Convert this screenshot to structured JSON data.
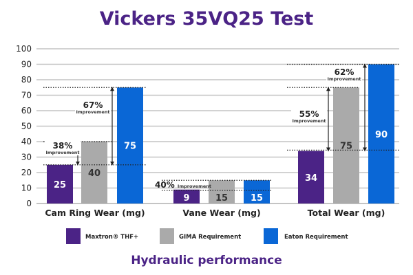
{
  "chart_data": {
    "type": "bar",
    "title": "Vickers 35VQ25 Test",
    "subtitle": "Hydraulic performance",
    "categories": [
      "Cam Ring Wear (mg)",
      "Vane Wear (mg)",
      "Total Wear (mg)"
    ],
    "series": [
      {
        "name": "Maxtron® THF+",
        "values": [
          25,
          9,
          34
        ],
        "color": "#4b2386"
      },
      {
        "name": "GIMA Requirement",
        "values": [
          40,
          15,
          75
        ],
        "color": "#aaaaaa"
      },
      {
        "name": "Eaton Requirement",
        "values": [
          75,
          15,
          90
        ],
        "color": "#0a67d6"
      }
    ],
    "ylim": [
      0,
      100
    ],
    "yticks": [
      0,
      10,
      20,
      30,
      40,
      50,
      60,
      70,
      80,
      90,
      100
    ],
    "grid": true,
    "legend": "bottom",
    "annotations": [
      {
        "category": 0,
        "from": 25,
        "to": 40,
        "pct": "38%",
        "label": "Improvement"
      },
      {
        "category": 0,
        "from": 25,
        "to": 75,
        "pct": "67%",
        "label": "Improvement"
      },
      {
        "category": 1,
        "from": 9,
        "to": 15,
        "pct": "40%",
        "label": "Improvement"
      },
      {
        "category": 2,
        "from": 34,
        "to": 75,
        "pct": "55%",
        "label": "Improvement"
      },
      {
        "category": 2,
        "from": 34,
        "to": 90,
        "pct": "62%",
        "label": "Improvement"
      }
    ]
  }
}
